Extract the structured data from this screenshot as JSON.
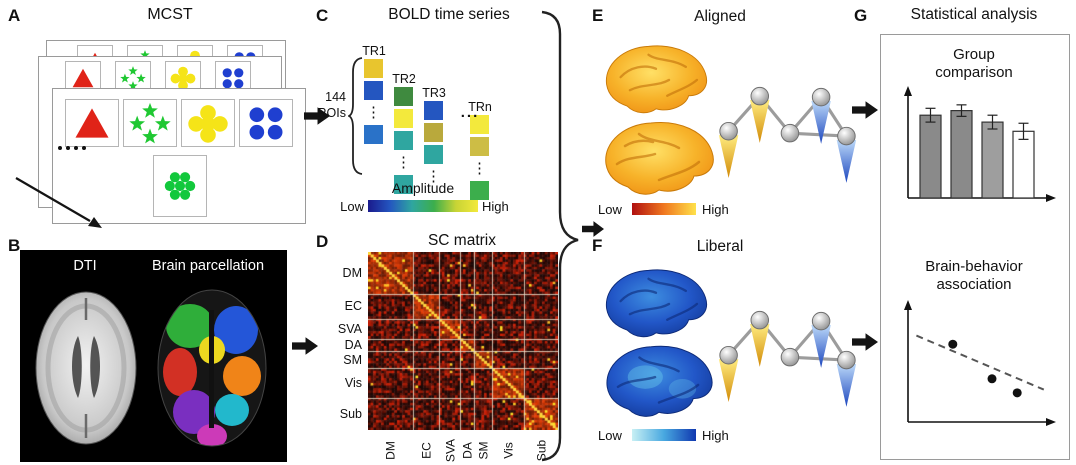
{
  "palette": {
    "arrow": "#141414",
    "amplitude_gradient": [
      "#1a1a8c",
      "#2456c0",
      "#2fa6a0",
      "#3cae4c",
      "#c8d435",
      "#f3e93c"
    ],
    "aligned_gradient": [
      "#b01010",
      "#f07820",
      "#ffe14a"
    ],
    "liberal_gradient": [
      "#c8f0f4",
      "#48a8e0",
      "#1038b0"
    ],
    "cone_yellow": "#eeb41f",
    "cone_blue": "#2a56c8",
    "node_gray": "#b5b5b5",
    "aligned_brain": "#f5a91f",
    "liberal_brain": "#2257c8"
  },
  "panels": {
    "a": {
      "letter": "A",
      "title": "MCST",
      "card_shapes": [
        "red-triangle",
        "green-stars",
        "yellow-clubs",
        "blue-circles",
        "green-dot-cluster"
      ]
    },
    "b": {
      "letter": "B",
      "labels": {
        "dti": "DTI",
        "parcellation": "Brain parcellation"
      }
    },
    "c": {
      "letter": "C",
      "title": "BOLD time series",
      "roi_count": "144",
      "roi_unit": "ROIs",
      "ellipsis": "...",
      "amplitude": {
        "title": "Amplitude",
        "low": "Low",
        "high": "High"
      },
      "columns": [
        {
          "label": "TR1",
          "squares": [
            "#e8c52e",
            "#2456c0",
            "dots",
            "#2a72c8"
          ]
        },
        {
          "label": "TR2",
          "squares": [
            "#3f8a3f",
            "#f3e93c",
            "#2fa6a0",
            "dots",
            "#2fa6a0"
          ]
        },
        {
          "label": "TR3",
          "squares": [
            "#2456c0",
            "#b9a93c",
            "#2fa6a0",
            "dots"
          ]
        },
        {
          "label": "TRn",
          "squares": [
            "#f3e93c",
            "#cdbd45",
            "dots",
            "#3cae4c"
          ]
        }
      ]
    },
    "d": {
      "letter": "D",
      "title": "SC matrix",
      "row_labels": [
        "DM",
        "EC",
        "SVA",
        "DA",
        "SM",
        "Vis",
        "Sub"
      ],
      "col_labels": [
        "DM",
        "EC",
        "SVA",
        "DA",
        "SM",
        "Vis",
        "Sub"
      ],
      "group_sizes": [
        34,
        20,
        16,
        10,
        14,
        24,
        26
      ],
      "colormap": "black-red with yellow diagonal"
    },
    "e": {
      "letter": "E",
      "title": "Aligned",
      "colorbar": {
        "low": "Low",
        "high": "High"
      }
    },
    "f": {
      "letter": "F",
      "title": "Liberal",
      "colorbar": {
        "low": "Low",
        "high": "High"
      }
    },
    "g": {
      "letter": "G",
      "title": "Statistical analysis",
      "group_chart": {
        "title": "Group comparison",
        "title_lines": [
          "Group",
          "comparison"
        ]
      },
      "assoc_chart": {
        "title": "Brain-behavior association",
        "title_lines": [
          "Brain-behavior",
          "association"
        ]
      }
    }
  },
  "chart_data": [
    {
      "type": "bar",
      "title": "Group comparison",
      "categories": [
        "",
        "",
        "",
        ""
      ],
      "values": [
        0.72,
        0.76,
        0.66,
        0.58
      ],
      "errors": [
        0.06,
        0.05,
        0.06,
        0.07
      ],
      "colors": [
        "#8a8a8a",
        "#8a8a8a",
        "#9e9e9e",
        "#ffffff"
      ],
      "ylim": [
        0,
        1
      ],
      "grid": false,
      "axis_style": "arrow-tipped, no tick labels"
    },
    {
      "type": "scatter",
      "title": "Brain-behavior association",
      "points": [
        {
          "x": 0.32,
          "y": 0.72
        },
        {
          "x": 0.6,
          "y": 0.4
        },
        {
          "x": 0.78,
          "y": 0.27
        }
      ],
      "trendline": {
        "style": "dashed",
        "slope": "negative",
        "x1": 0.06,
        "y1": 0.8,
        "x2": 0.97,
        "y2": 0.3
      },
      "grid": false,
      "axis_style": "arrow-tipped, no tick labels"
    }
  ]
}
